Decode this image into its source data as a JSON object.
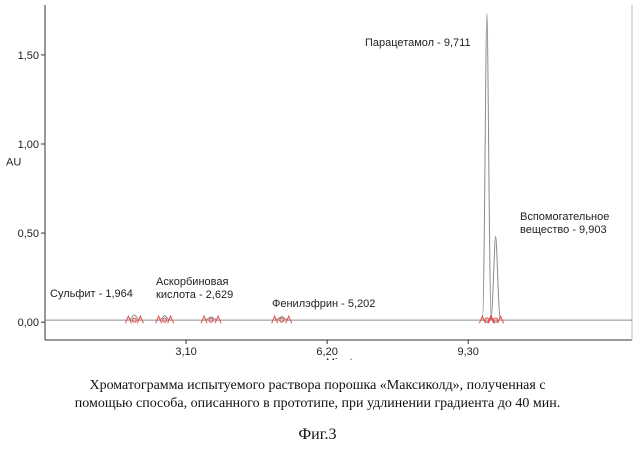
{
  "chart_data": {
    "type": "line",
    "xlabel": "Minutes",
    "ylabel": "AU",
    "x_ticks": [
      {
        "value": 3.1,
        "label": "3,10"
      },
      {
        "value": 6.2,
        "label": "6,20"
      },
      {
        "value": 9.3,
        "label": "9,30"
      }
    ],
    "y_ticks": [
      {
        "value": 0.0,
        "label": "0,00"
      },
      {
        "value": 0.5,
        "label": "0,50"
      },
      {
        "value": 1.0,
        "label": "1,00"
      },
      {
        "value": 1.5,
        "label": "1,50"
      }
    ],
    "xlim": [
      0.0,
      12.9
    ],
    "ylim": [
      -0.1,
      1.78
    ],
    "baseline": 0.0,
    "peaks": [
      {
        "label_lines": [
          "Сульфит - 1,964"
        ],
        "rt": 1.964,
        "height": 0.03,
        "width": 0.06
      },
      {
        "label_lines": [
          "Аскорбиновая",
          "кислота - 2,629"
        ],
        "rt": 2.629,
        "height": 0.025,
        "width": 0.06
      },
      {
        "label_lines": [],
        "rt": 3.65,
        "height": 0.018,
        "width": 0.07
      },
      {
        "label_lines": [
          "Фенилэфрин - 5,202"
        ],
        "rt": 5.202,
        "height": 0.02,
        "width": 0.07
      },
      {
        "label_lines": [
          "Парацетамол - 9,711"
        ],
        "rt": 9.711,
        "height": 1.72,
        "width": 0.045
      },
      {
        "label_lines": [
          "Вспомогательное",
          "вещество - 9,903"
        ],
        "rt": 9.903,
        "height": 0.47,
        "width": 0.05
      }
    ]
  },
  "caption": {
    "line1": "Хроматограмма испытуемого раствора порошка «Максиколд», полученная с",
    "line2": "помощью способа, описанного в прототипе, при удлинении градиента до 40 мин."
  },
  "figure_label": "Фиг.3",
  "colors": {
    "trace": "#8a8a8a",
    "marker": "#e24b4b",
    "axis": "#333333"
  }
}
